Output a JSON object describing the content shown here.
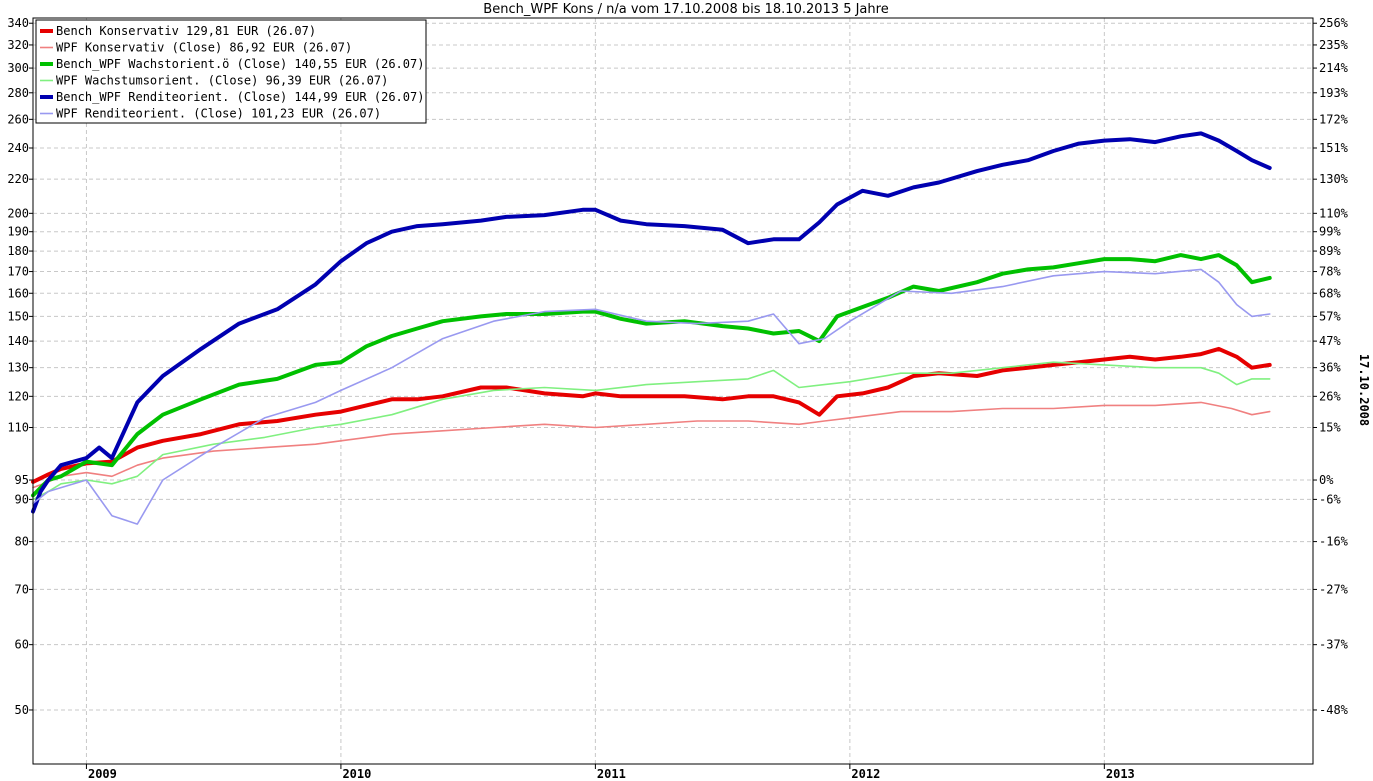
{
  "chart_data": {
    "type": "line",
    "title": "Bench_WPF Kons / n/a vom 17.10.2008 bis 18.10.2013 5 Jahre",
    "side_label": "17.10.2008",
    "y_scale": "log",
    "ylim": [
      43,
      345
    ],
    "xlim": [
      2008.79,
      2013.82
    ],
    "x_ticks": [
      2009,
      2010,
      2011,
      2012,
      2013
    ],
    "x_tick_labels": [
      "2009",
      "2010",
      "2011",
      "2012",
      "2013"
    ],
    "y_ticks_left": [
      50,
      60,
      70,
      80,
      90,
      95,
      110,
      120,
      130,
      140,
      150,
      160,
      170,
      180,
      190,
      200,
      220,
      240,
      260,
      280,
      300,
      320,
      340
    ],
    "y_tick_labels_left": [
      "50",
      "60",
      "70",
      "80",
      "90",
      "95",
      "110",
      "120",
      "130",
      "140",
      "150",
      "160",
      "170",
      "180",
      "190",
      "200",
      "220",
      "240",
      "260",
      "280",
      "300",
      "320",
      "340"
    ],
    "y_ticks_right": [
      {
        "label": "256%",
        "value": 340
      },
      {
        "label": "235%",
        "value": 320
      },
      {
        "label": "214%",
        "value": 300
      },
      {
        "label": "193%",
        "value": 280
      },
      {
        "label": "172%",
        "value": 260
      },
      {
        "label": "151%",
        "value": 240
      },
      {
        "label": "130%",
        "value": 220
      },
      {
        "label": "110%",
        "value": 200
      },
      {
        "label": "99%",
        "value": 190
      },
      {
        "label": "89%",
        "value": 180
      },
      {
        "label": "78%",
        "value": 170
      },
      {
        "label": "68%",
        "value": 160
      },
      {
        "label": "57%",
        "value": 150
      },
      {
        "label": "47%",
        "value": 140
      },
      {
        "label": "36%",
        "value": 130
      },
      {
        "label": "26%",
        "value": 120
      },
      {
        "label": "15%",
        "value": 110
      },
      {
        "label": "0%",
        "value": 95
      },
      {
        "label": "-6%",
        "value": 90
      },
      {
        "label": "-16%",
        "value": 80
      },
      {
        "label": "-27%",
        "value": 70
      },
      {
        "label": "-37%",
        "value": 60
      },
      {
        "label": "-48%",
        "value": 50
      }
    ],
    "grid": true,
    "legend_position": "top-left",
    "series": [
      {
        "name": "Bench Konservativ 129,81 EUR (26.07)",
        "color": "#e60000",
        "weight": "thick",
        "x": [
          2008.79,
          2008.85,
          2008.9,
          2009.0,
          2009.1,
          2009.2,
          2009.3,
          2009.45,
          2009.6,
          2009.75,
          2009.9,
          2010.0,
          2010.1,
          2010.2,
          2010.3,
          2010.4,
          2010.55,
          2010.65,
          2010.8,
          2010.95,
          2011.0,
          2011.1,
          2011.2,
          2011.35,
          2011.5,
          2011.6,
          2011.7,
          2011.8,
          2011.88,
          2011.95,
          2012.05,
          2012.15,
          2012.25,
          2012.35,
          2012.5,
          2012.6,
          2012.7,
          2012.8,
          2012.9,
          2013.0,
          2013.1,
          2013.2,
          2013.3,
          2013.38,
          2013.45,
          2013.52,
          2013.58,
          2013.65
        ],
        "y": [
          94.5,
          96.5,
          98,
          99.5,
          100,
          104,
          106,
          108,
          111,
          112,
          114,
          115,
          117,
          119,
          119,
          120,
          123,
          123,
          121,
          120,
          121,
          120,
          120,
          120,
          119,
          120,
          120,
          118,
          114,
          120,
          121,
          123,
          127,
          128,
          127,
          129,
          130,
          131,
          132,
          133,
          134,
          133,
          134,
          135,
          137,
          134,
          130,
          131
        ]
      },
      {
        "name": "WPF Konservativ (Close) 86,92 EUR (26.07)",
        "color": "#f08080",
        "weight": "thin",
        "x": [
          2008.79,
          2008.85,
          2008.9,
          2009.0,
          2009.1,
          2009.2,
          2009.3,
          2009.5,
          2009.7,
          2009.9,
          2010.0,
          2010.2,
          2010.4,
          2010.6,
          2010.8,
          2011.0,
          2011.2,
          2011.4,
          2011.6,
          2011.8,
          2011.9,
          2012.0,
          2012.2,
          2012.4,
          2012.6,
          2012.8,
          2013.0,
          2013.2,
          2013.38,
          2013.5,
          2013.58,
          2013.65
        ],
        "y": [
          93,
          94.5,
          96,
          97,
          96,
          99,
          101,
          103,
          104,
          105,
          106,
          108,
          109,
          110,
          111,
          110,
          111,
          112,
          112,
          111,
          112,
          113,
          115,
          115,
          116,
          116,
          117,
          117,
          118,
          116,
          114,
          115
        ]
      },
      {
        "name": "Bench_WPF Wachstorient.ö (Close) 140,55 EUR (26.07)",
        "color": "#00c000",
        "weight": "thick",
        "x": [
          2008.79,
          2008.85,
          2008.9,
          2009.0,
          2009.1,
          2009.2,
          2009.3,
          2009.45,
          2009.6,
          2009.75,
          2009.9,
          2010.0,
          2010.1,
          2010.2,
          2010.3,
          2010.4,
          2010.55,
          2010.65,
          2010.8,
          2010.95,
          2011.0,
          2011.1,
          2011.2,
          2011.35,
          2011.5,
          2011.6,
          2011.7,
          2011.8,
          2011.88,
          2011.95,
          2012.05,
          2012.15,
          2012.25,
          2012.35,
          2012.5,
          2012.6,
          2012.7,
          2012.8,
          2012.9,
          2013.0,
          2013.1,
          2013.2,
          2013.3,
          2013.38,
          2013.45,
          2013.52,
          2013.58,
          2013.65
        ],
        "y": [
          91,
          95,
          96,
          100,
          99,
          108,
          114,
          119,
          124,
          126,
          131,
          132,
          138,
          142,
          145,
          148,
          150,
          151,
          151,
          152,
          152,
          149,
          147,
          148,
          146,
          145,
          143,
          144,
          140,
          150,
          154,
          158,
          163,
          161,
          165,
          169,
          171,
          172,
          174,
          176,
          176,
          175,
          178,
          176,
          178,
          173,
          165,
          167
        ]
      },
      {
        "name": "WPF Wachstumsorient. (Close) 96,39 EUR (26.07)",
        "color": "#80f080",
        "weight": "thin",
        "x": [
          2008.79,
          2008.85,
          2008.9,
          2009.0,
          2009.1,
          2009.2,
          2009.3,
          2009.5,
          2009.7,
          2009.9,
          2010.0,
          2010.2,
          2010.4,
          2010.6,
          2010.8,
          2011.0,
          2011.2,
          2011.4,
          2011.6,
          2011.7,
          2011.8,
          2011.9,
          2012.0,
          2012.2,
          2012.4,
          2012.6,
          2012.8,
          2013.0,
          2013.2,
          2013.38,
          2013.45,
          2013.52,
          2013.58,
          2013.65
        ],
        "y": [
          90,
          92,
          94,
          95,
          94,
          96,
          102,
          105,
          107,
          110,
          111,
          114,
          119,
          122,
          123,
          122,
          124,
          125,
          126,
          129,
          123,
          124,
          125,
          128,
          128,
          130,
          132,
          131,
          130,
          130,
          128,
          124,
          126,
          126
        ]
      },
      {
        "name": "Bench_WPF Renditeorient. (Close) 144,99 EUR (26.07)",
        "color": "#0000b0",
        "weight": "thick",
        "x": [
          2008.79,
          2008.82,
          2008.85,
          2008.9,
          2009.0,
          2009.05,
          2009.1,
          2009.2,
          2009.3,
          2009.45,
          2009.6,
          2009.75,
          2009.9,
          2010.0,
          2010.1,
          2010.2,
          2010.3,
          2010.4,
          2010.55,
          2010.65,
          2010.8,
          2010.95,
          2011.0,
          2011.1,
          2011.2,
          2011.35,
          2011.5,
          2011.6,
          2011.7,
          2011.8,
          2011.88,
          2011.95,
          2012.05,
          2012.15,
          2012.25,
          2012.35,
          2012.5,
          2012.6,
          2012.7,
          2012.8,
          2012.9,
          2013.0,
          2013.1,
          2013.2,
          2013.3,
          2013.38,
          2013.45,
          2013.52,
          2013.58,
          2013.65
        ],
        "y": [
          87,
          92,
          95,
          99,
          101,
          104,
          101,
          118,
          127,
          137,
          147,
          153,
          164,
          175,
          184,
          190,
          193,
          194,
          196,
          198,
          199,
          202,
          202,
          196,
          194,
          193,
          191,
          184,
          186,
          186,
          195,
          205,
          213,
          210,
          215,
          218,
          225,
          229,
          232,
          238,
          243,
          245,
          246,
          244,
          248,
          250,
          245,
          238,
          232,
          227
        ]
      },
      {
        "name": "WPF Renditeorient. (Close) 101,23 EUR (26.07)",
        "color": "#9999f0",
        "weight": "thin",
        "x": [
          2008.79,
          2008.85,
          2008.9,
          2009.0,
          2009.1,
          2009.2,
          2009.3,
          2009.5,
          2009.7,
          2009.9,
          2010.0,
          2010.2,
          2010.4,
          2010.6,
          2010.8,
          2011.0,
          2011.2,
          2011.4,
          2011.6,
          2011.7,
          2011.8,
          2011.9,
          2012.0,
          2012.2,
          2012.4,
          2012.6,
          2012.8,
          2013.0,
          2013.2,
          2013.38,
          2013.45,
          2013.52,
          2013.58,
          2013.65
        ],
        "y": [
          89,
          92,
          93,
          95,
          86,
          84,
          95,
          104,
          113,
          118,
          122,
          130,
          141,
          148,
          152,
          153,
          148,
          147,
          148,
          151,
          139,
          141,
          148,
          161,
          160,
          163,
          168,
          170,
          169,
          171,
          165,
          155,
          150,
          151
        ]
      }
    ]
  }
}
